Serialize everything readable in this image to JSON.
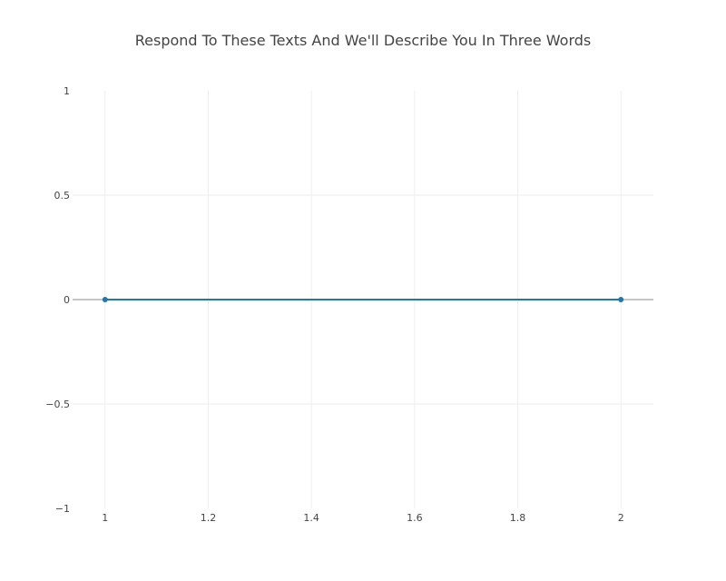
{
  "chart_data": {
    "type": "line",
    "title": "Respond To These Texts And We'll Describe You In Three Words",
    "xlabel": "",
    "ylabel": "",
    "x_ticks": [
      "1",
      "1.2",
      "1.4",
      "1.6",
      "1.8",
      "2"
    ],
    "x_tick_values": [
      1,
      1.2,
      1.4,
      1.6,
      1.8,
      2
    ],
    "y_ticks": [
      "1",
      "0.5",
      "0",
      "−0.5",
      "−1"
    ],
    "y_tick_values": [
      1,
      0.5,
      0,
      -0.5,
      -1
    ],
    "xlim": [
      0.937,
      2.063
    ],
    "ylim": [
      -1,
      1
    ],
    "grid": true,
    "legend": "none",
    "series": [
      {
        "x": [
          1,
          2
        ],
        "y": [
          0,
          0
        ],
        "color": "#1f77b4",
        "mode": "lines+markers"
      }
    ]
  }
}
